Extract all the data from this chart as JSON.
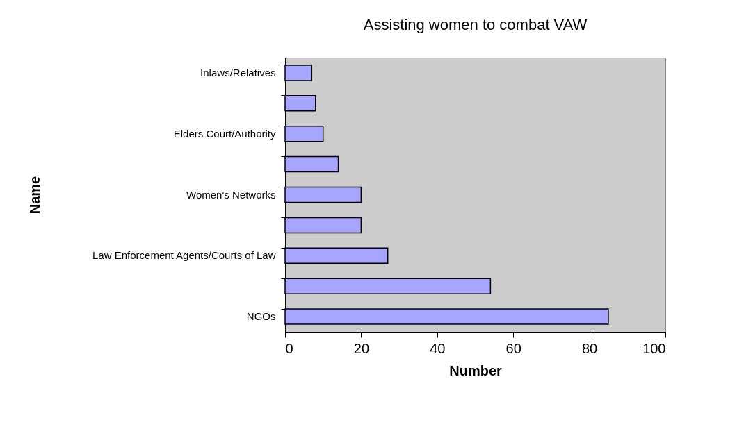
{
  "chart_data": {
    "type": "bar",
    "orientation": "horizontal",
    "title": "Assisting women to combat VAW",
    "xlabel": "Number",
    "ylabel": "Name",
    "categories": [
      "Inlaws/Relatives",
      null,
      "Elders Court/Authority",
      null,
      "Women's Networks",
      null,
      "Law Enforcement Agents/Courts of Law",
      null,
      "NGOs"
    ],
    "values": [
      7,
      8,
      10,
      14,
      20,
      20,
      27,
      54,
      85
    ],
    "color": "#a6a6ff",
    "xlim": [
      0,
      100
    ],
    "xticks": [
      0,
      20,
      40,
      60,
      80,
      100
    ],
    "grid": false
  }
}
